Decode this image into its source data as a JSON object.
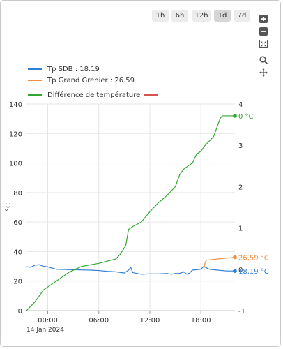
{
  "range_buttons": [
    {
      "label": "1h",
      "active": false
    },
    {
      "label": "6h",
      "active": false
    },
    {
      "label": "12h",
      "active": false
    },
    {
      "label": "1d",
      "active": true
    },
    {
      "label": "7d",
      "active": false
    }
  ],
  "toolbar": {
    "icons": [
      "plus-icon",
      "minus-icon",
      "fit-icon",
      "zoom-icon",
      "pan-icon"
    ]
  },
  "legend": {
    "sdb": "Tp SDB : 18.19",
    "grenier": "Tp Grand Grenier : 26.59",
    "diff": "Différence de température"
  },
  "chart_data": {
    "type": "line",
    "y_left": {
      "label": "°C",
      "ticks": [
        "0",
        "20",
        "40",
        "60",
        "80",
        "100",
        "120",
        "140"
      ],
      "range": [
        0,
        140
      ]
    },
    "y_right": {
      "ticks": [
        "-1",
        "0",
        "1",
        "2",
        "3",
        "4"
      ],
      "range": [
        -1,
        4
      ]
    },
    "x": {
      "ticks": [
        "00:00",
        "06:00",
        "12:00",
        "18:00"
      ],
      "date": "14 Jan 2024"
    },
    "series": [
      {
        "name": "Tp SDB : 18.19",
        "axis": "right",
        "color": "#2f7ed8",
        "end_label": "18,19 °C",
        "points": [
          [
            "2024-01-13 21:30",
            0.06
          ],
          [
            "2024-01-13 22:00",
            0.05
          ],
          [
            "2024-01-13 22:30",
            0.1
          ],
          [
            "2024-01-13 23:00",
            0.11
          ],
          [
            "2024-01-13 23:30",
            0.07
          ],
          [
            "2024-01-14 00:00",
            0.06
          ],
          [
            "2024-01-14 01:00",
            0.0
          ],
          [
            "2024-01-14 03:00",
            -0.01
          ],
          [
            "2024-01-14 05:00",
            -0.02
          ],
          [
            "2024-01-14 06:00",
            -0.03
          ],
          [
            "2024-01-14 07:00",
            -0.05
          ],
          [
            "2024-01-14 08:00",
            -0.06
          ],
          [
            "2024-01-14 09:00",
            -0.09
          ],
          [
            "2024-01-14 09:30",
            -0.02
          ],
          [
            "2024-01-14 09:45",
            0.05
          ],
          [
            "2024-01-14 10:00",
            -0.08
          ],
          [
            "2024-01-14 11:00",
            -0.12
          ],
          [
            "2024-01-14 12:00",
            -0.11
          ],
          [
            "2024-01-14 13:00",
            -0.11
          ],
          [
            "2024-01-14 14:00",
            -0.1
          ],
          [
            "2024-01-14 14:30",
            -0.12
          ],
          [
            "2024-01-14 15:00",
            -0.1
          ],
          [
            "2024-01-14 15:30",
            -0.1
          ],
          [
            "2024-01-14 16:00",
            -0.06
          ],
          [
            "2024-01-14 16:20",
            -0.12
          ],
          [
            "2024-01-14 16:40",
            -0.09
          ],
          [
            "2024-01-14 17:00",
            -0.02
          ],
          [
            "2024-01-14 18:00",
            0.0
          ],
          [
            "2024-01-14 18:20",
            0.07
          ],
          [
            "2024-01-14 19:00",
            0.0
          ],
          [
            "2024-01-14 20:00",
            -0.02
          ],
          [
            "2024-01-14 21:00",
            -0.04
          ],
          [
            "2024-01-14 22:00",
            -0.04
          ]
        ]
      },
      {
        "name": "Tp Grand Grenier : 26.59",
        "axis": "right",
        "color": "#f28f43",
        "end_label": "26,59 °C",
        "points": [
          [
            "2024-01-14 18:20",
            0.0
          ],
          [
            "2024-01-14 18:30",
            0.17
          ],
          [
            "2024-01-14 18:40",
            0.22
          ],
          [
            "2024-01-14 19:00",
            0.23
          ],
          [
            "2024-01-14 20:00",
            0.25
          ],
          [
            "2024-01-14 21:00",
            0.27
          ],
          [
            "2024-01-14 22:00",
            0.29
          ]
        ]
      },
      {
        "name": "Différence de température",
        "axis": "left",
        "color": "#31a82f",
        "end_label": "0 °C",
        "points": [
          [
            "2024-01-13 21:30",
            0
          ],
          [
            "2024-01-13 22:30",
            6
          ],
          [
            "2024-01-13 23:30",
            14
          ],
          [
            "2024-01-14 00:30",
            18
          ],
          [
            "2024-01-14 01:30",
            22
          ],
          [
            "2024-01-14 02:30",
            26
          ],
          [
            "2024-01-14 04:00",
            30
          ],
          [
            "2024-01-14 06:00",
            32
          ],
          [
            "2024-01-14 08:00",
            35
          ],
          [
            "2024-01-14 08:30",
            38
          ],
          [
            "2024-01-14 09:10",
            44
          ],
          [
            "2024-01-14 09:30",
            55
          ],
          [
            "2024-01-14 10:00",
            57
          ],
          [
            "2024-01-14 11:00",
            60
          ],
          [
            "2024-01-14 12:00",
            67
          ],
          [
            "2024-01-14 13:00",
            73
          ],
          [
            "2024-01-14 14:00",
            78
          ],
          [
            "2024-01-14 14:30",
            81
          ],
          [
            "2024-01-14 15:00",
            84
          ],
          [
            "2024-01-14 15:30",
            92
          ],
          [
            "2024-01-14 16:00",
            96
          ],
          [
            "2024-01-14 17:00",
            100
          ],
          [
            "2024-01-14 17:30",
            106
          ],
          [
            "2024-01-14 18:00",
            108
          ],
          [
            "2024-01-14 18:30",
            112
          ],
          [
            "2024-01-14 19:30",
            118
          ],
          [
            "2024-01-14 20:15",
            130
          ],
          [
            "2024-01-14 20:30",
            132
          ],
          [
            "2024-01-14 22:00",
            132
          ]
        ]
      },
      {
        "name": "",
        "axis": "right",
        "color": "#d9534f",
        "points": []
      }
    ]
  }
}
